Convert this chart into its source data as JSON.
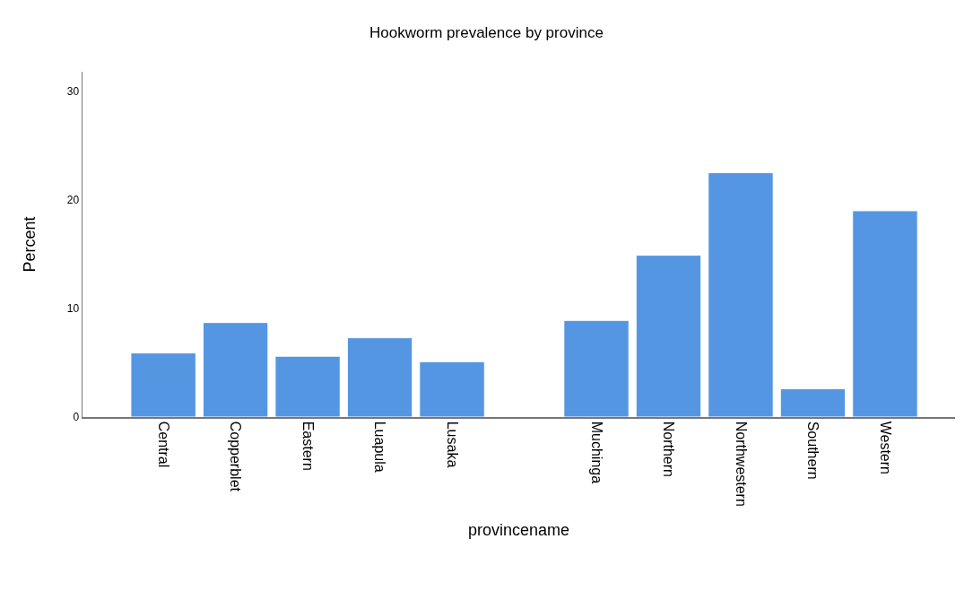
{
  "chart_data": {
    "type": "bar",
    "title": "Hookworm prevalence by province",
    "xlabel": "provincename",
    "ylabel": "Percent",
    "categories": [
      "Central",
      "Copperblet",
      "Eastern",
      "Luapula",
      "Lusaka",
      null,
      "Muchinga",
      "Northern",
      "Northwestern",
      "Southern",
      "Western"
    ],
    "values": [
      5.9,
      8.7,
      5.6,
      7.3,
      5.1,
      null,
      8.9,
      14.9,
      22.5,
      2.6,
      19.0
    ],
    "color": "#5596e3",
    "ylim": [
      0,
      31.8
    ],
    "yticks": [
      0,
      10,
      20,
      30
    ],
    "grid": false,
    "legend": false
  }
}
